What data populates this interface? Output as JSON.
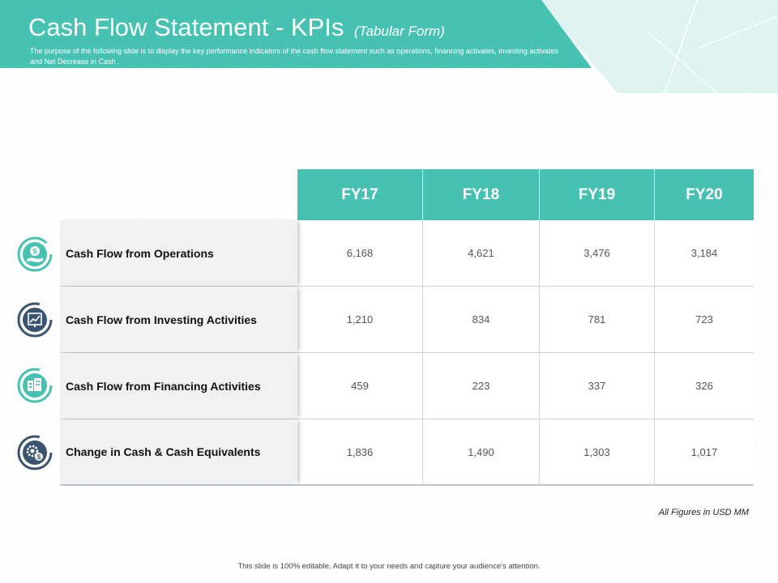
{
  "header": {
    "title": "Cash Flow Statement - KPIs",
    "title_suffix": "(Tabular Form)",
    "subtitle": "The purpose of the following slide is to display the key performance indicators of the cash flow statement such as operations, financing activates, investing activates and Net Decrease in Cash ."
  },
  "table": {
    "columns": [
      "FY17",
      "FY18",
      "FY19",
      "FY20"
    ],
    "rows": [
      {
        "label": "Cash Flow from Operations",
        "icon": "money-hand-icon",
        "values": [
          "6,168",
          "4,621",
          "3,476",
          "3,184"
        ]
      },
      {
        "label": "Cash Flow from Investing Activities",
        "icon": "investment-chart-icon",
        "values": [
          "1,210",
          "834",
          "781",
          "723"
        ]
      },
      {
        "label": "Cash Flow from Financing Activities",
        "icon": "financing-building-icon",
        "values": [
          "459",
          "223",
          "337",
          "326"
        ]
      },
      {
        "label": "Change in Cash & Cash Equivalents",
        "icon": "gear-dollar-icon",
        "values": [
          "1,836",
          "1,490",
          "1,303",
          "1,017"
        ]
      }
    ]
  },
  "footnote": "All Figures in USD MM",
  "footer": "This slide is 100% editable.  Adapt it to your needs and capture your audience's attention.",
  "colors": {
    "accent": "#46c1b2",
    "light_accent": "#dff4f1",
    "icon_dark": "#3b5570"
  }
}
